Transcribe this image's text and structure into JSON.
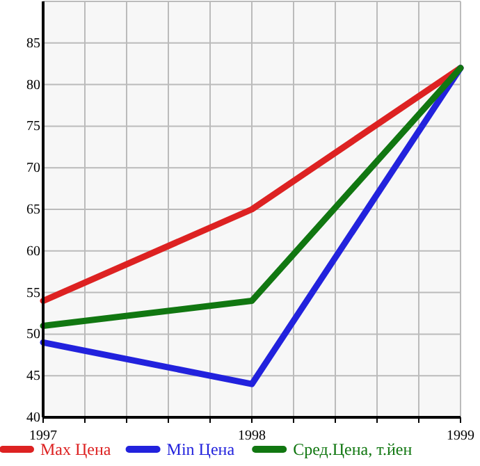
{
  "chart_data": {
    "type": "line",
    "x": [
      1997,
      1998,
      1999
    ],
    "series": [
      {
        "name": "Max Цена",
        "color": "#dd2222",
        "values": [
          54,
          65,
          82
        ]
      },
      {
        "name": "Min Цена",
        "color": "#2222dd",
        "values": [
          49,
          44,
          82
        ]
      },
      {
        "name": "Сред.Цена, т.йен",
        "color": "#117711",
        "values": [
          51,
          54,
          82
        ]
      }
    ],
    "xlim": [
      1997,
      1999
    ],
    "xticks": [
      1997,
      {
        "value": 1997.2,
        "label": null
      },
      {
        "value": 1997.4,
        "label": null
      },
      {
        "value": 1997.6,
        "label": null
      },
      {
        "value": 1997.8,
        "label": null
      },
      1998,
      {
        "value": 1998.2,
        "label": null
      },
      {
        "value": 1998.4,
        "label": null
      },
      {
        "value": 1998.6,
        "label": null
      },
      {
        "value": 1998.8,
        "label": null
      },
      1999
    ],
    "ylim": [
      40,
      90
    ],
    "yticks": [
      40,
      45,
      50,
      55,
      60,
      65,
      70,
      75,
      80,
      85,
      {
        "value": 90,
        "label": null
      }
    ],
    "grid": true,
    "legend": "bottom",
    "marker": "none",
    "line_style": "solid"
  }
}
